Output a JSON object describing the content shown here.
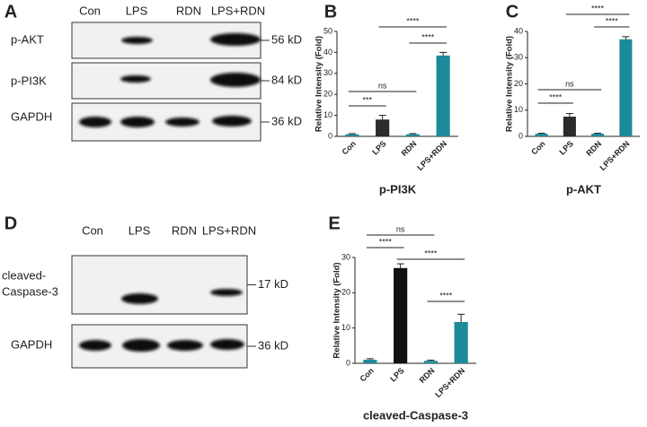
{
  "blots": [
    {
      "letter": "A",
      "lanes": [
        "Con",
        "LPS",
        "RDN",
        "LPS+RDN"
      ],
      "rows": [
        {
          "label": "p-AKT",
          "size": "56 kD"
        },
        {
          "label": "p-PI3K",
          "size": "84 kD"
        },
        {
          "label": "GAPDH",
          "size": "36 kD"
        }
      ]
    },
    {
      "letter": "D",
      "lanes": [
        "Con",
        "LPS",
        "RDN",
        "LPS+RDN"
      ],
      "rows": [
        {
          "label": "cleaved-Caspase-3",
          "size": "17 kD"
        },
        {
          "label": "GAPDH",
          "size": "36 kD"
        }
      ]
    }
  ],
  "chart_data": [
    {
      "type": "bar",
      "letter": "B",
      "title": "p-PI3K",
      "y_label": "Relative Intensity (Fold)",
      "categories": [
        "Con",
        "LPS",
        "RDN",
        "LPS+RDN"
      ],
      "values": [
        1,
        8,
        1,
        38.5
      ],
      "errors": [
        0.3,
        2,
        0.3,
        1.5
      ],
      "colors": [
        "#1d8a99",
        "#2b2b2b",
        "#1d8a99",
        "#1d8a99"
      ],
      "ylim": [
        0,
        50
      ],
      "yticks": [
        0,
        10,
        20,
        30,
        40,
        50
      ],
      "comparisons": [
        {
          "between": [
            0,
            1
          ],
          "label": "***"
        },
        {
          "between": [
            0,
            2
          ],
          "label": "ns"
        },
        {
          "between": [
            2,
            3
          ],
          "label": "****"
        },
        {
          "between": [
            1,
            3
          ],
          "label": "****"
        }
      ]
    },
    {
      "type": "bar",
      "letter": "C",
      "title": "p-AKT",
      "y_label": "Relative Intensity (Fold)",
      "categories": [
        "Con",
        "LPS",
        "RDN",
        "LPS+RDN"
      ],
      "values": [
        1,
        7.5,
        1,
        37
      ],
      "errors": [
        0.2,
        1.2,
        0.2,
        1
      ],
      "colors": [
        "#1d8a99",
        "#2b2b2b",
        "#1d8a99",
        "#1d8a99"
      ],
      "ylim": [
        0,
        40
      ],
      "yticks": [
        0,
        10,
        20,
        30,
        40
      ],
      "comparisons": [
        {
          "between": [
            0,
            1
          ],
          "label": "****"
        },
        {
          "between": [
            0,
            2
          ],
          "label": "ns"
        },
        {
          "between": [
            2,
            3
          ],
          "label": "****"
        },
        {
          "between": [
            1,
            3
          ],
          "label": "****"
        }
      ]
    },
    {
      "type": "bar",
      "letter": "E",
      "title": "cleaved-Caspase-3",
      "y_label": "Relative Intensity (Fold)",
      "categories": [
        "Con",
        "LPS",
        "RDN",
        "LPS+RDN"
      ],
      "values": [
        1,
        27,
        0.7,
        11.7
      ],
      "errors": [
        0.3,
        1.2,
        0.2,
        2.2
      ],
      "colors": [
        "#1d8a99",
        "#111111",
        "#1d8a99",
        "#1d8a99"
      ],
      "ylim": [
        0,
        30
      ],
      "yticks": [
        0,
        10,
        20,
        30
      ],
      "comparisons": [
        {
          "between": [
            0,
            2
          ],
          "label": "ns"
        },
        {
          "between": [
            0,
            1
          ],
          "label": "****"
        },
        {
          "between": [
            1,
            3
          ],
          "label": "****"
        },
        {
          "between": [
            2,
            3
          ],
          "label": "****"
        }
      ]
    }
  ]
}
